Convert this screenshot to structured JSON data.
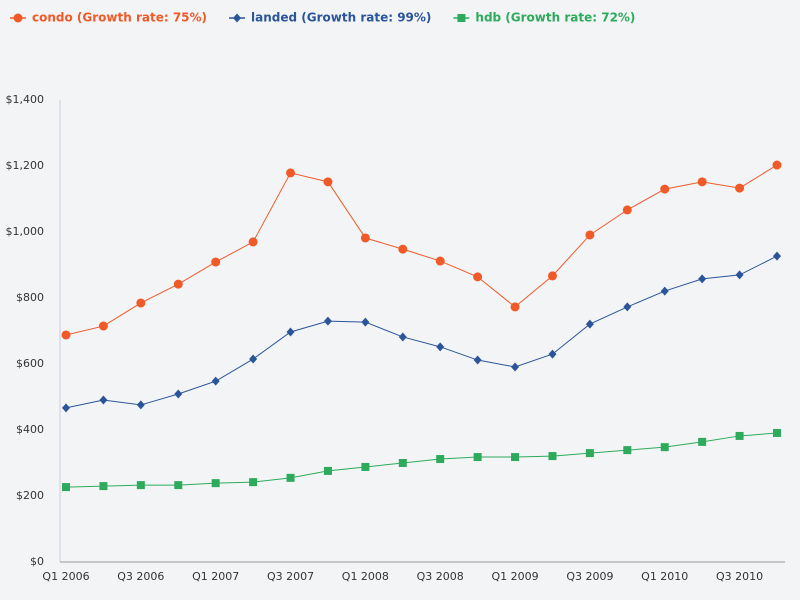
{
  "chart_data": {
    "type": "line",
    "categories": [
      "Q1 2006",
      null,
      "Q3 2006",
      null,
      "Q1 2007",
      null,
      "Q3 2007",
      null,
      "Q1 2008",
      null,
      "Q3 2008",
      null,
      "Q1 2009",
      null,
      "Q3 2009",
      null,
      "Q1 2010",
      null,
      "Q3 2010",
      null
    ],
    "series": [
      {
        "name": "condo (Growth rate: 75%)",
        "color": "#f05a28",
        "marker": "circle",
        "values": [
          688,
          715,
          785,
          842,
          909,
          970,
          1179,
          1152,
          982,
          948,
          912,
          864,
          773,
          867,
          991,
          1067,
          1130,
          1152,
          1133,
          1203
        ]
      },
      {
        "name": "landed (Growth rate: 99%)",
        "color": "#2a5599",
        "marker": "diamond",
        "values": [
          467,
          491,
          476,
          509,
          548,
          615,
          697,
          730,
          727,
          682,
          652,
          612,
          591,
          630,
          721,
          773,
          821,
          858,
          870,
          927
        ]
      },
      {
        "name": "hdb (Growth rate: 72%)",
        "color": "#2eaa5c",
        "marker": "square",
        "values": [
          227,
          230,
          233,
          233,
          239,
          242,
          255,
          276,
          288,
          300,
          312,
          318,
          318,
          321,
          330,
          339,
          348,
          364,
          382,
          391
        ]
      }
    ],
    "ylim": [
      0,
      1400
    ],
    "yticks": [
      {
        "value": 0,
        "label": "$0"
      },
      {
        "value": 200,
        "label": "$200"
      },
      {
        "value": 400,
        "label": "$400"
      },
      {
        "value": 600,
        "label": "$600"
      },
      {
        "value": 800,
        "label": "$800"
      },
      {
        "value": 1000,
        "label": "$1,000"
      },
      {
        "value": 1200,
        "label": "$1,200"
      },
      {
        "value": 1400,
        "label": "$1,400"
      }
    ],
    "grid": false,
    "legend": "top-left"
  }
}
